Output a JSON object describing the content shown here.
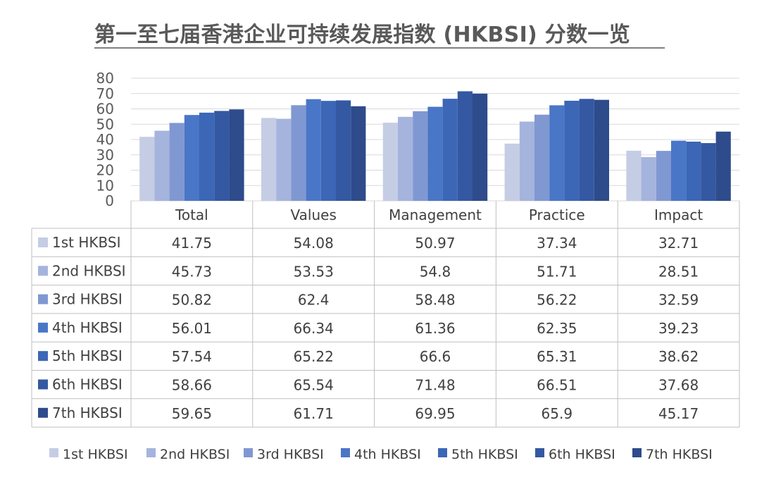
{
  "title": "第一至七届香港企业可持续发展指数 (HKBSI) 分数一览",
  "chart_data": {
    "type": "bar",
    "title": "第一至七届香港企业可持续发展指数 (HKBSI) 分数一览",
    "categories": [
      "Total",
      "Values",
      "Management",
      "Practice",
      "Impact"
    ],
    "ylim": [
      0,
      80
    ],
    "yticks": [
      0,
      10,
      20,
      30,
      40,
      50,
      60,
      70,
      80
    ],
    "grid": true,
    "legend": "bottom",
    "data_table": true,
    "series": [
      {
        "name": "1st HKBSI",
        "color": "#c5cde5",
        "values": [
          41.75,
          54.08,
          50.97,
          37.34,
          32.71
        ]
      },
      {
        "name": "2nd HKBSI",
        "color": "#a5b4dd",
        "values": [
          45.73,
          53.53,
          54.8,
          51.71,
          28.51
        ]
      },
      {
        "name": "3rd HKBSI",
        "color": "#8098d2",
        "values": [
          50.82,
          62.4,
          58.48,
          56.22,
          32.59
        ]
      },
      {
        "name": "4th HKBSI",
        "color": "#4a76c7",
        "values": [
          56.01,
          66.34,
          61.36,
          62.35,
          39.23
        ]
      },
      {
        "name": "5th HKBSI",
        "color": "#3c66b6",
        "values": [
          57.54,
          65.22,
          66.6,
          65.31,
          38.62
        ]
      },
      {
        "name": "6th HKBSI",
        "color": "#3459a2",
        "values": [
          58.66,
          65.54,
          71.48,
          66.51,
          37.68
        ]
      },
      {
        "name": "7th HKBSI",
        "color": "#2e4b8b",
        "values": [
          59.65,
          61.71,
          69.95,
          65.9,
          45.17
        ]
      }
    ]
  }
}
